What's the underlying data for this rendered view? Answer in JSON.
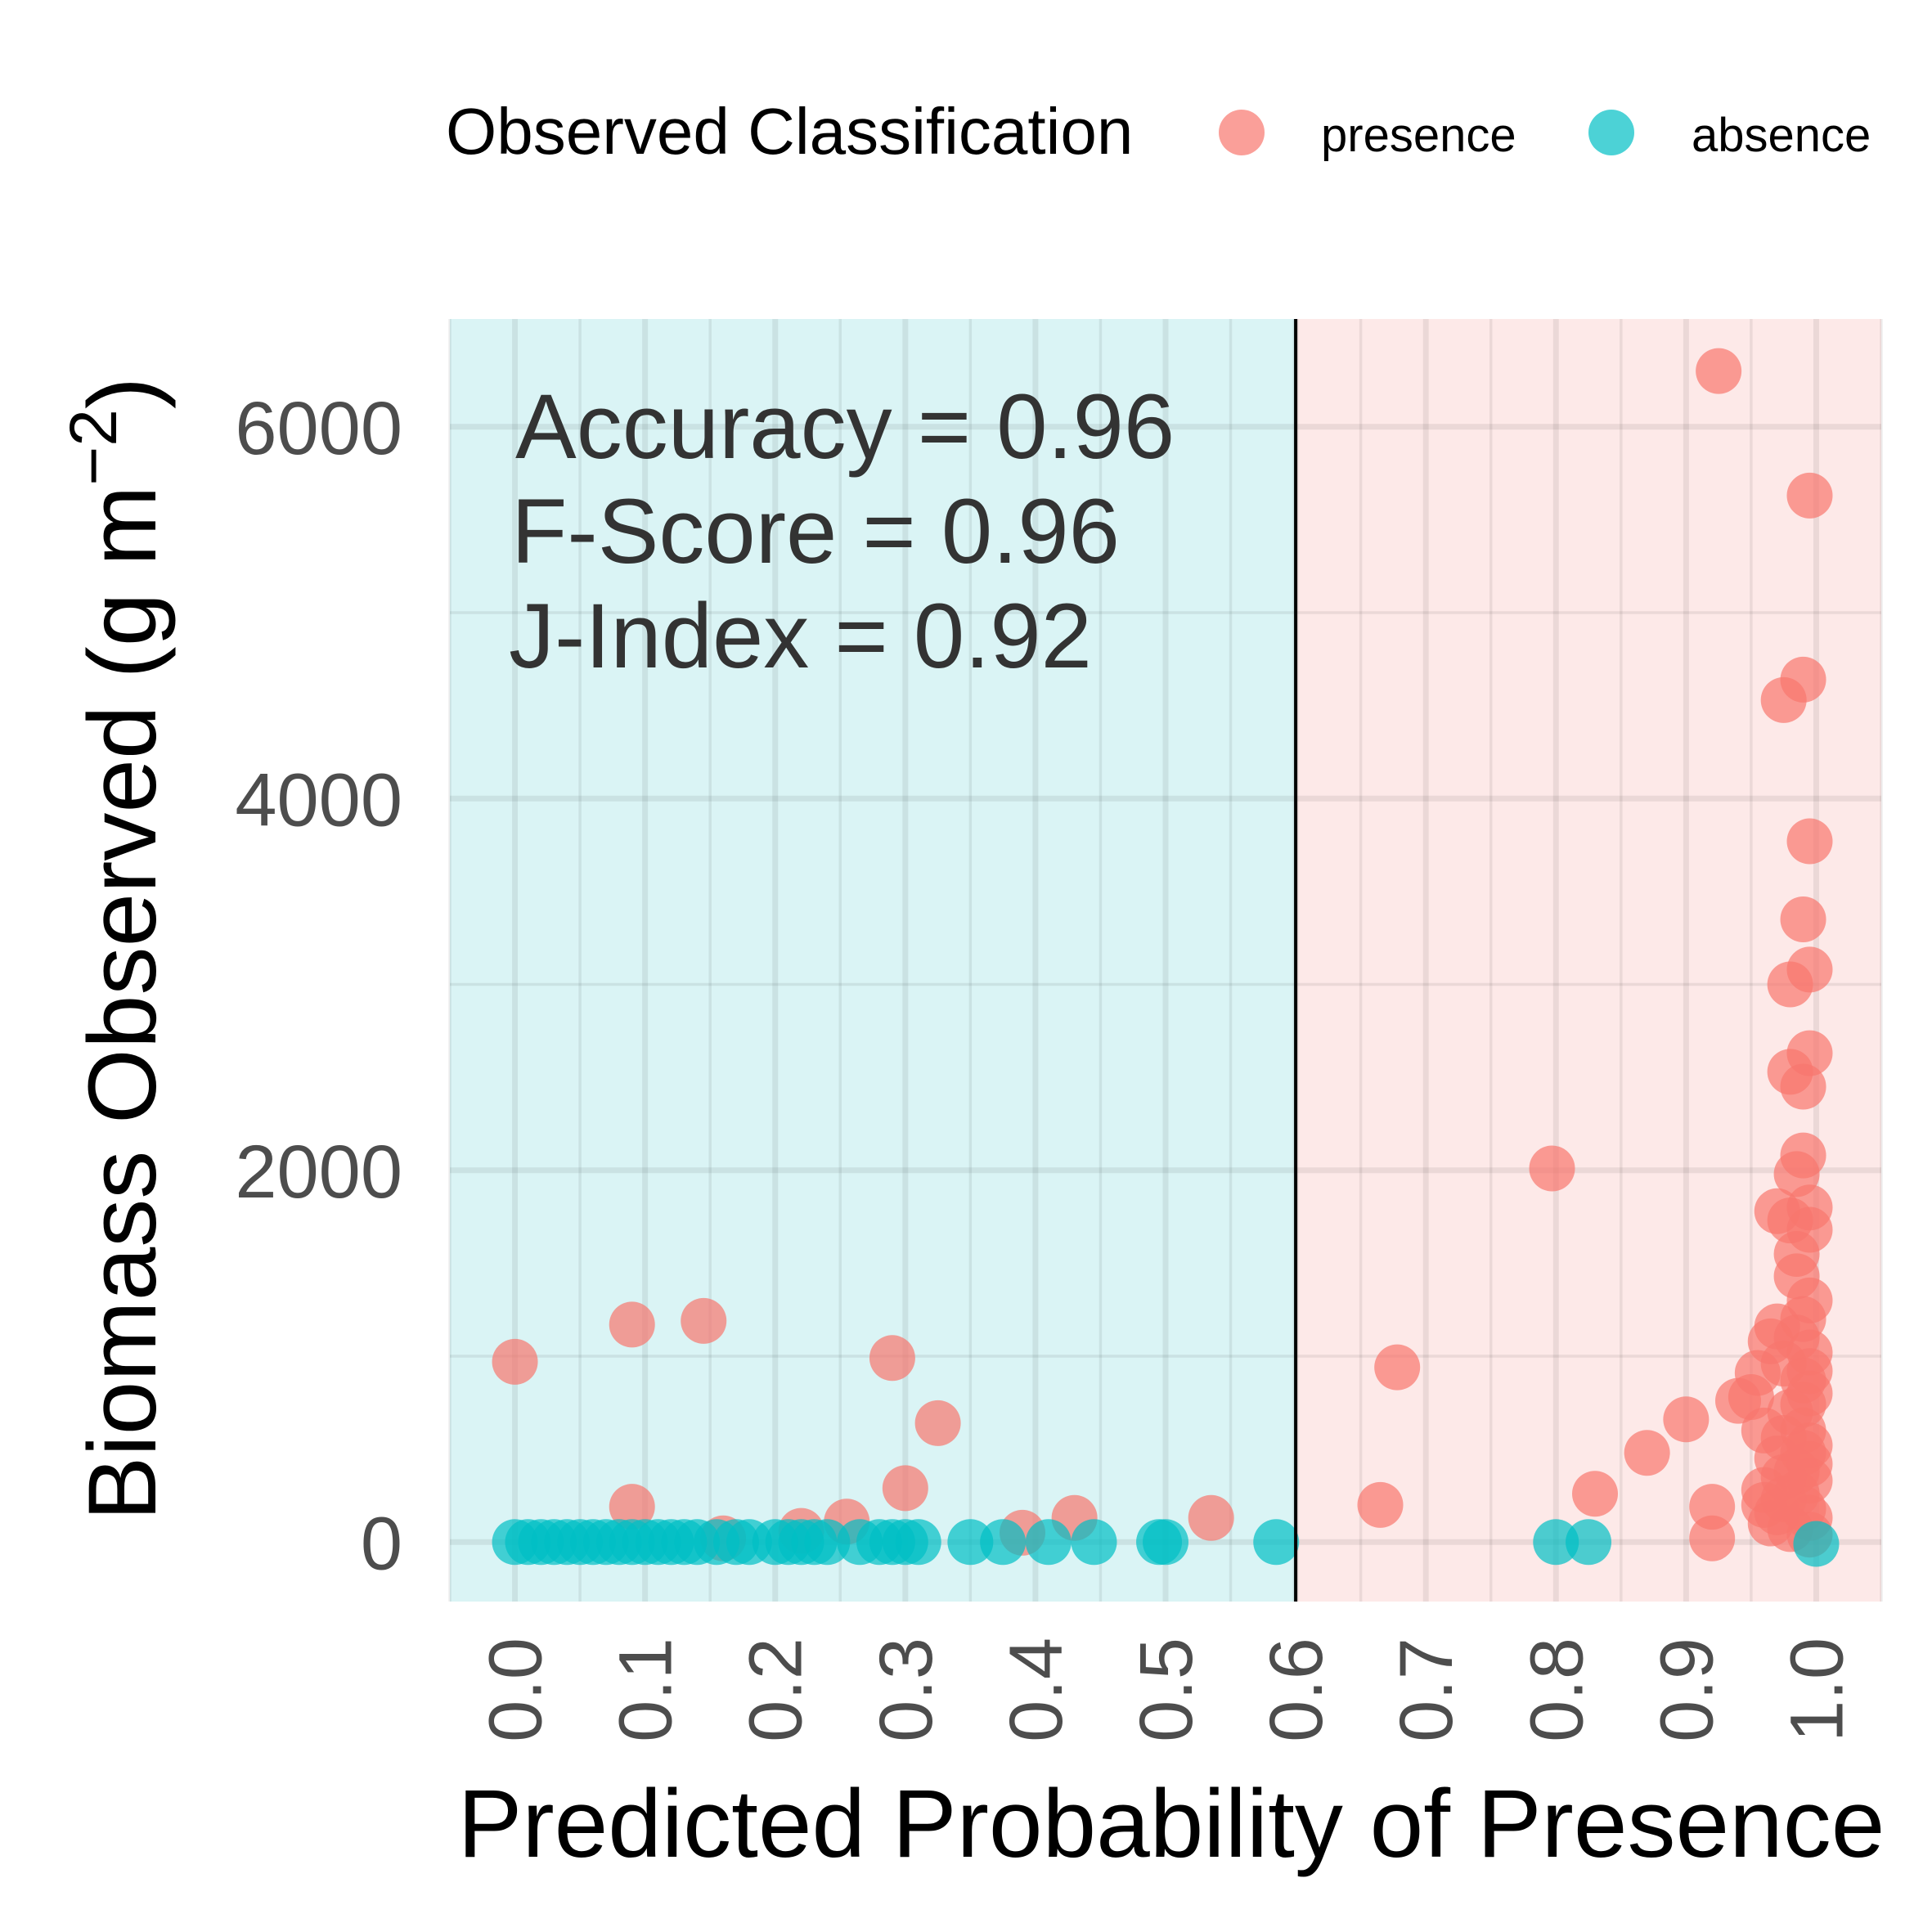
{
  "chart_data": {
    "type": "scatter",
    "title": "",
    "xlabel": "Predicted Probability of Presence",
    "ylabel": "Biomass Observed (g m",
    "ylabel_unit_exponent": "−2",
    "ylabel_close": ")",
    "xlim": [
      -0.05,
      1.05
    ],
    "ylim": [
      -320,
      6580
    ],
    "x_ticks": [
      0.0,
      0.1,
      0.2,
      0.3,
      0.4,
      0.5,
      0.6,
      0.7,
      0.8,
      0.9,
      1.0
    ],
    "x_tick_labels": [
      "0.0",
      "0.1",
      "0.2",
      "0.3",
      "0.4",
      "0.5",
      "0.6",
      "0.7",
      "0.8",
      "0.9",
      "1.0"
    ],
    "y_ticks": [
      0,
      2000,
      4000,
      6000
    ],
    "y_tick_labels": [
      "0",
      "2000",
      "4000",
      "6000"
    ],
    "threshold": 0.6,
    "grid": true,
    "legend": {
      "title": "Observed Classification",
      "placement": "top",
      "entries": [
        {
          "label": "presence",
          "color": "#F8766D"
        },
        {
          "label": "absence",
          "color": "#00BFC4"
        }
      ]
    },
    "regions": {
      "below_threshold_color": "#DAF4F5",
      "above_threshold_color": "#FDE9E8"
    },
    "annotations": [
      "Accuracy = 0.96",
      "F-Score = 0.96",
      "J-Index = 0.92"
    ],
    "series": [
      {
        "name": "presence",
        "color": "#F8766D",
        "points": [
          [
            0.0,
            970
          ],
          [
            0.09,
            1170
          ],
          [
            0.145,
            1190
          ],
          [
            0.29,
            990
          ],
          [
            0.325,
            640
          ],
          [
            0.09,
            190
          ],
          [
            0.3,
            290
          ],
          [
            0.16,
            20
          ],
          [
            0.22,
            60
          ],
          [
            0.255,
            110
          ],
          [
            0.39,
            50
          ],
          [
            0.43,
            130
          ],
          [
            0.535,
            130
          ],
          [
            0.665,
            200
          ],
          [
            0.678,
            940
          ],
          [
            0.797,
            2010
          ],
          [
            0.83,
            260
          ],
          [
            0.87,
            480
          ],
          [
            0.9,
            660
          ],
          [
            0.92,
            190
          ],
          [
            0.92,
            20
          ],
          [
            0.925,
            6300
          ],
          [
            0.94,
            760
          ],
          [
            0.95,
            780
          ],
          [
            0.955,
            910
          ],
          [
            0.96,
            600
          ],
          [
            0.965,
            1080
          ],
          [
            0.97,
            1160
          ],
          [
            0.975,
            4530
          ],
          [
            0.98,
            2530
          ],
          [
            0.98,
            3000
          ],
          [
            0.985,
            1550
          ],
          [
            0.99,
            4640
          ],
          [
            0.995,
            5630
          ],
          [
            0.995,
            3770
          ],
          [
            0.99,
            3350
          ],
          [
            0.995,
            3080
          ],
          [
            0.995,
            2630
          ],
          [
            0.99,
            2450
          ],
          [
            0.99,
            2080
          ],
          [
            0.985,
            1980
          ],
          [
            0.995,
            1800
          ],
          [
            0.97,
            1780
          ],
          [
            0.98,
            1730
          ],
          [
            0.995,
            1680
          ],
          [
            0.985,
            1430
          ],
          [
            0.995,
            1300
          ],
          [
            0.99,
            1200
          ],
          [
            0.975,
            960
          ],
          [
            0.99,
            870
          ],
          [
            0.995,
            800
          ],
          [
            0.98,
            700
          ],
          [
            0.99,
            600
          ],
          [
            0.995,
            520
          ],
          [
            0.97,
            450
          ],
          [
            0.985,
            380
          ],
          [
            0.995,
            330
          ],
          [
            0.96,
            280
          ],
          [
            0.975,
            230
          ],
          [
            0.99,
            180
          ],
          [
            0.995,
            130
          ],
          [
            0.965,
            100
          ],
          [
            0.98,
            70
          ],
          [
            0.995,
            40
          ],
          [
            0.97,
            160
          ],
          [
            0.985,
            260
          ],
          [
            0.995,
            420
          ],
          [
            0.975,
            560
          ],
          [
            0.99,
            740
          ],
          [
            0.995,
            1020
          ],
          [
            0.985,
            1100
          ],
          [
            0.995,
            920
          ],
          [
            0.975,
            350
          ],
          [
            0.99,
            480
          ],
          [
            0.96,
            200
          ]
        ]
      },
      {
        "name": "absence",
        "color": "#00BFC4",
        "points": [
          [
            0.0,
            0
          ],
          [
            0.01,
            0
          ],
          [
            0.02,
            0
          ],
          [
            0.03,
            0
          ],
          [
            0.04,
            0
          ],
          [
            0.05,
            0
          ],
          [
            0.06,
            0
          ],
          [
            0.07,
            0
          ],
          [
            0.08,
            0
          ],
          [
            0.09,
            0
          ],
          [
            0.1,
            0
          ],
          [
            0.11,
            0
          ],
          [
            0.12,
            0
          ],
          [
            0.13,
            0
          ],
          [
            0.14,
            0
          ],
          [
            0.155,
            0
          ],
          [
            0.17,
            0
          ],
          [
            0.18,
            0
          ],
          [
            0.2,
            0
          ],
          [
            0.21,
            0
          ],
          [
            0.22,
            0
          ],
          [
            0.23,
            0
          ],
          [
            0.24,
            0
          ],
          [
            0.265,
            0
          ],
          [
            0.28,
            0
          ],
          [
            0.29,
            0
          ],
          [
            0.3,
            0
          ],
          [
            0.31,
            0
          ],
          [
            0.35,
            0
          ],
          [
            0.375,
            0
          ],
          [
            0.41,
            0
          ],
          [
            0.445,
            0
          ],
          [
            0.495,
            0
          ],
          [
            0.5,
            0
          ],
          [
            0.585,
            0
          ],
          [
            0.8,
            0
          ],
          [
            0.825,
            0
          ],
          [
            1.0,
            -10
          ]
        ]
      }
    ]
  }
}
